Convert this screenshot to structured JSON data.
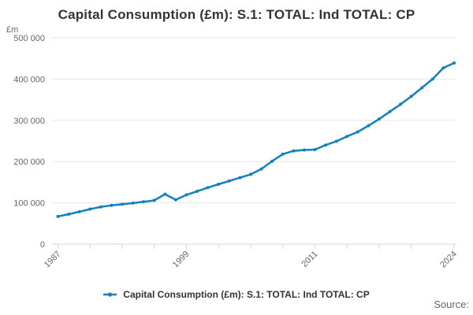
{
  "header": {
    "title": "Capital Consumption (£m): S.1: TOTAL: Ind TOTAL: CP",
    "unit_label": "£m"
  },
  "legend": {
    "series_label": "Capital Consumption (£m): S.1: TOTAL: Ind TOTAL: CP"
  },
  "source": {
    "label": "Source:"
  },
  "colors": {
    "series": "#1380be",
    "grid": "#e6e6e6",
    "axis": "#ccd6eb",
    "tick_text": "#666666",
    "title_text": "#333333"
  },
  "chart_data": {
    "type": "line",
    "title": "Capital Consumption (£m): S.1: TOTAL: Ind TOTAL: CP",
    "xlabel": "",
    "ylabel": "£m",
    "ylim": [
      0,
      500000
    ],
    "ytick_values": [
      0,
      100000,
      200000,
      300000,
      400000,
      500000
    ],
    "ytick_labels": [
      "0",
      "100 000",
      "200 000",
      "300 000",
      "400 000",
      "500 000"
    ],
    "xtick_years": [
      1987,
      1990,
      1993,
      1996,
      1999,
      2002,
      2005,
      2008,
      2011,
      2014,
      2017,
      2020,
      2024
    ],
    "xtick_labeled_years": [
      1987,
      1999,
      2011,
      2024
    ],
    "xtick_labels": [
      "1987",
      "1999",
      "2011",
      "2024"
    ],
    "grid": "horizontal",
    "legend_position": "bottom",
    "marker": "circle",
    "x": [
      1987,
      1988,
      1989,
      1990,
      1991,
      1992,
      1993,
      1994,
      1995,
      1996,
      1997,
      1998,
      1999,
      2000,
      2001,
      2002,
      2003,
      2004,
      2005,
      2006,
      2007,
      2008,
      2009,
      2010,
      2011,
      2012,
      2013,
      2014,
      2015,
      2016,
      2017,
      2018,
      2019,
      2020,
      2021,
      2022,
      2023,
      2024
    ],
    "series": [
      {
        "name": "Capital Consumption (£m): S.1: TOTAL: Ind TOTAL: CP",
        "values": [
          67000,
          72500,
          78500,
          85000,
          90000,
          94000,
          96500,
          99500,
          102500,
          106000,
          121000,
          107500,
          119500,
          128000,
          137000,
          145000,
          153000,
          161000,
          169000,
          182000,
          201000,
          218000,
          226000,
          228000,
          229000,
          240000,
          249000,
          261000,
          272000,
          287000,
          303000,
          321000,
          339000,
          358000,
          379000,
          400000,
          427000,
          439000
        ]
      }
    ]
  }
}
